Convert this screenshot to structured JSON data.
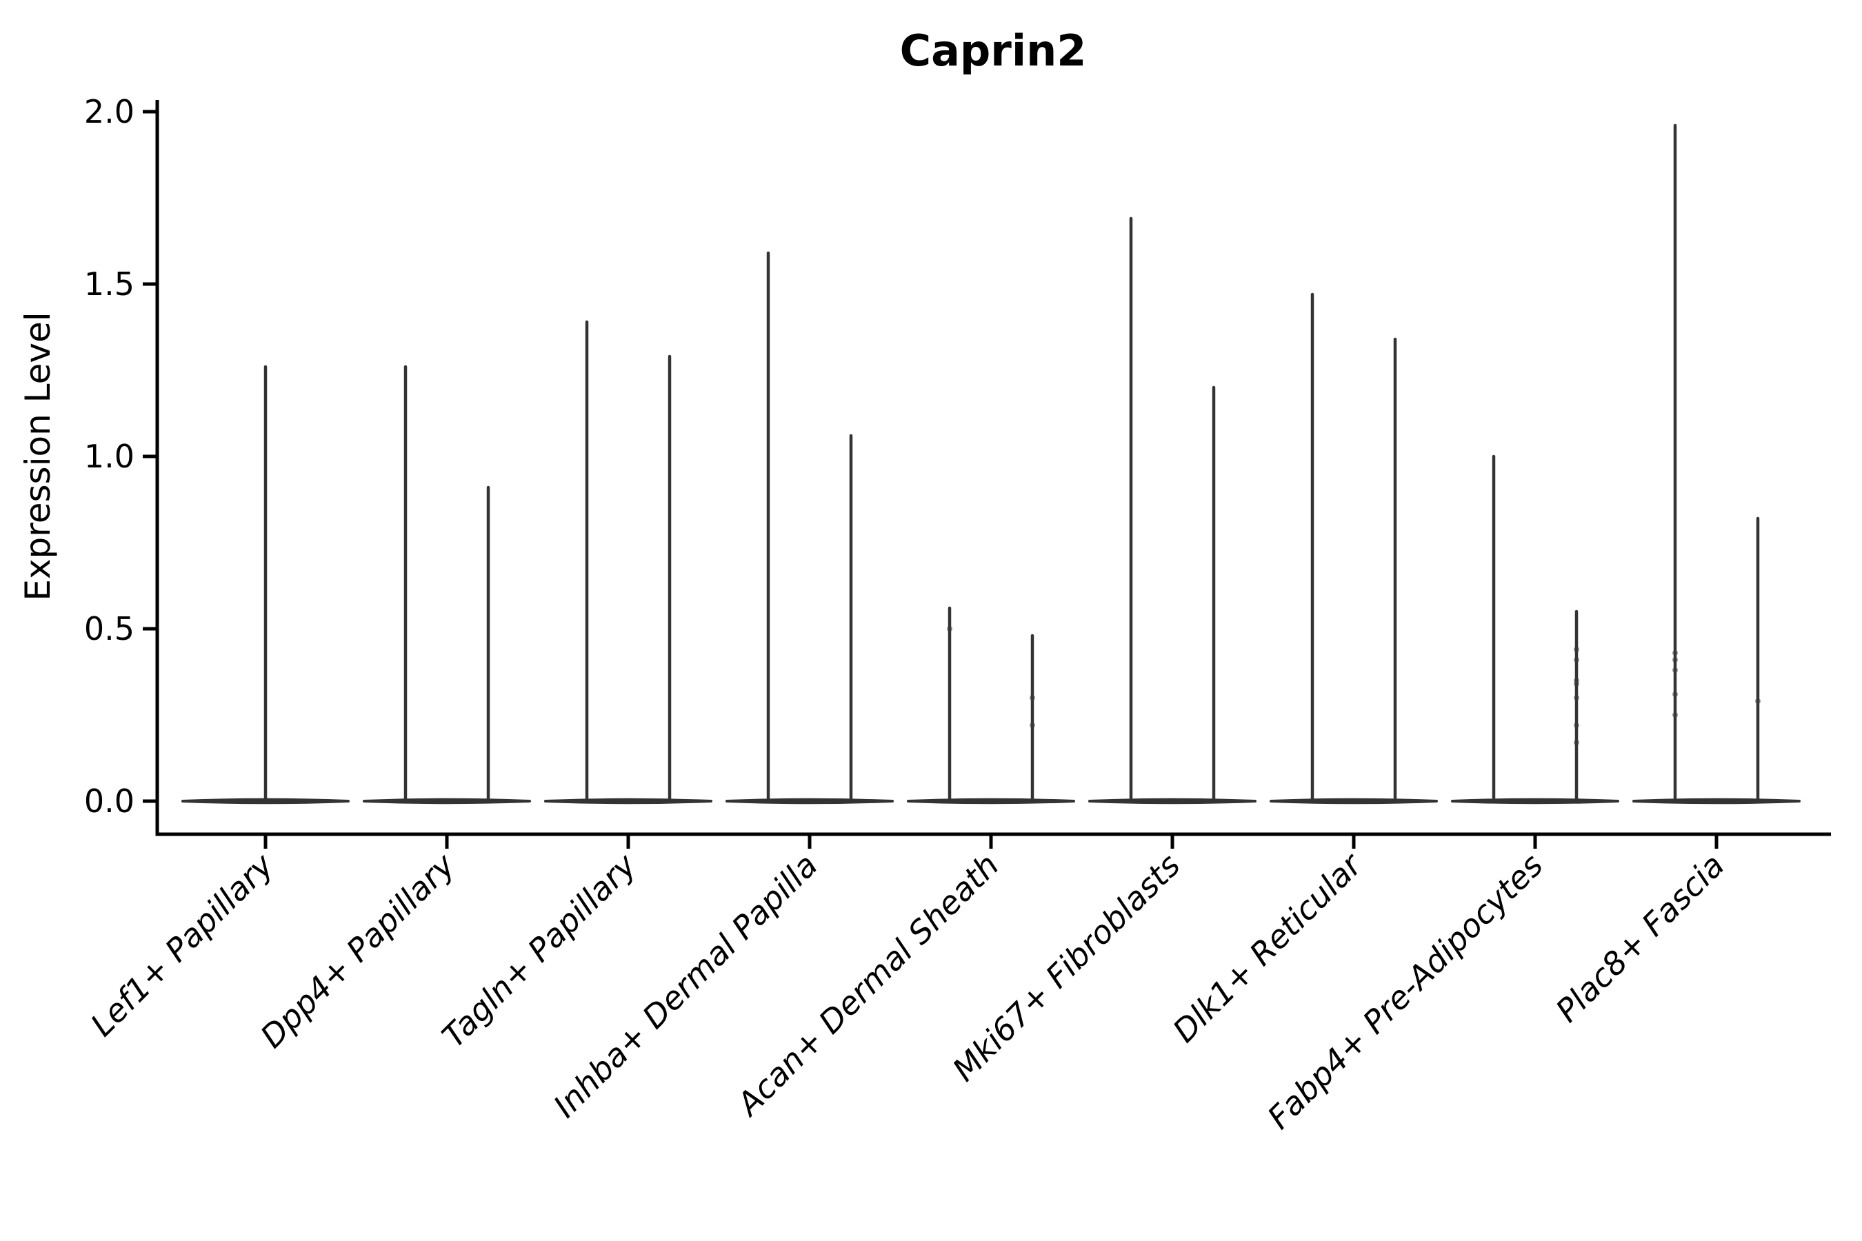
{
  "chart_data": {
    "type": "violin",
    "title": "Caprin2",
    "ylabel": "Expression Level",
    "xlabel": "",
    "ylim": [
      0.0,
      2.0
    ],
    "yticks": [
      0.0,
      0.5,
      1.0,
      1.5,
      2.0
    ],
    "grid": false,
    "legend": null,
    "categories": [
      "Lef1+ Papillary",
      "Dpp4+ Papillary",
      "Tagln+ Papillary",
      "Inhba+ Dermal Papilla",
      "Acan+ Dermal Sheath",
      "Mki67+ Fibroblasts",
      "Dlk1+ Reticular",
      "Fabp4+ Pre-Adipocytes",
      "Plac8+ Fascia"
    ],
    "violins": [
      {
        "category": "Lef1+ Papillary",
        "spikes": [
          {
            "offset": 0,
            "max": 1.26,
            "points": []
          }
        ]
      },
      {
        "category": "Dpp4+ Papillary",
        "spikes": [
          {
            "offset": -1,
            "max": 1.26,
            "points": []
          },
          {
            "offset": 1,
            "max": 0.91,
            "points": []
          }
        ]
      },
      {
        "category": "Tagln+ Papillary",
        "spikes": [
          {
            "offset": -1,
            "max": 1.39,
            "points": []
          },
          {
            "offset": 1,
            "max": 1.29,
            "points": []
          }
        ]
      },
      {
        "category": "Inhba+ Dermal Papilla",
        "spikes": [
          {
            "offset": -1,
            "max": 1.59,
            "points": []
          },
          {
            "offset": 1,
            "max": 1.06,
            "points": []
          }
        ]
      },
      {
        "category": "Acan+ Dermal Sheath",
        "spikes": [
          {
            "offset": -1,
            "max": 0.56,
            "points": [
              0.5
            ]
          },
          {
            "offset": 1,
            "max": 0.48,
            "points": [
              0.3,
              0.22
            ]
          }
        ]
      },
      {
        "category": "Mki67+ Fibroblasts",
        "spikes": [
          {
            "offset": -1,
            "max": 1.69,
            "points": []
          },
          {
            "offset": 1,
            "max": 1.2,
            "points": []
          }
        ]
      },
      {
        "category": "Dlk1+ Reticular",
        "spikes": [
          {
            "offset": -1,
            "max": 1.47,
            "points": []
          },
          {
            "offset": 1,
            "max": 1.34,
            "points": []
          }
        ]
      },
      {
        "category": "Fabp4+ Pre-Adipocytes",
        "spikes": [
          {
            "offset": -1,
            "max": 1.0,
            "points": []
          },
          {
            "offset": 1,
            "max": 0.55,
            "points": [
              0.44,
              0.41,
              0.35,
              0.34,
              0.3,
              0.22,
              0.17
            ]
          }
        ]
      },
      {
        "category": "Plac8+ Fascia",
        "spikes": [
          {
            "offset": -1,
            "max": 1.96,
            "points": [
              0.43,
              0.41,
              0.38,
              0.31,
              0.25
            ]
          },
          {
            "offset": 1,
            "max": 0.82,
            "points": [
              0.29
            ]
          }
        ]
      }
    ],
    "colors": {
      "violin_line": "#333333",
      "jitter_point": "#3a3a3a",
      "axis": "#000000",
      "background": "#ffffff"
    }
  }
}
